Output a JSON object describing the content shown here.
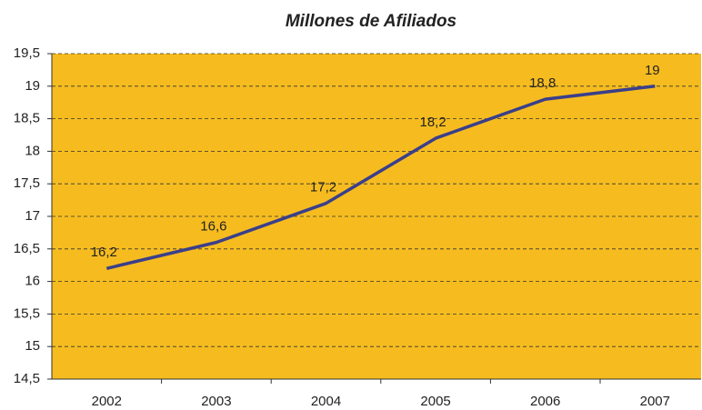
{
  "chart_data": {
    "type": "line",
    "title": "Millones de Afiliados",
    "categories": [
      "2002",
      "2003",
      "2004",
      "2005",
      "2006",
      "2007"
    ],
    "series": [
      {
        "name": "Millones de Afiliados",
        "color": "#3b3f8a",
        "values": [
          16.2,
          16.6,
          17.2,
          18.2,
          18.8,
          19
        ],
        "value_labels": [
          "16,2",
          "16,6",
          "17,2",
          "18,2",
          "18,8",
          "19"
        ]
      }
    ],
    "ylim": [
      14.5,
      19.5
    ],
    "yticks": [
      {
        "value": 14.5,
        "label": "14,5"
      },
      15,
      {
        "value": 15.5,
        "label": "15,5"
      },
      16,
      {
        "value": 16.5,
        "label": "16,5"
      },
      17,
      {
        "value": 17.5,
        "label": "17,5"
      },
      18,
      {
        "value": 18.5,
        "label": "18,5"
      },
      19,
      {
        "value": 19.5,
        "label": "19,5"
      }
    ],
    "grid": true,
    "background": "#f6bc1f"
  }
}
